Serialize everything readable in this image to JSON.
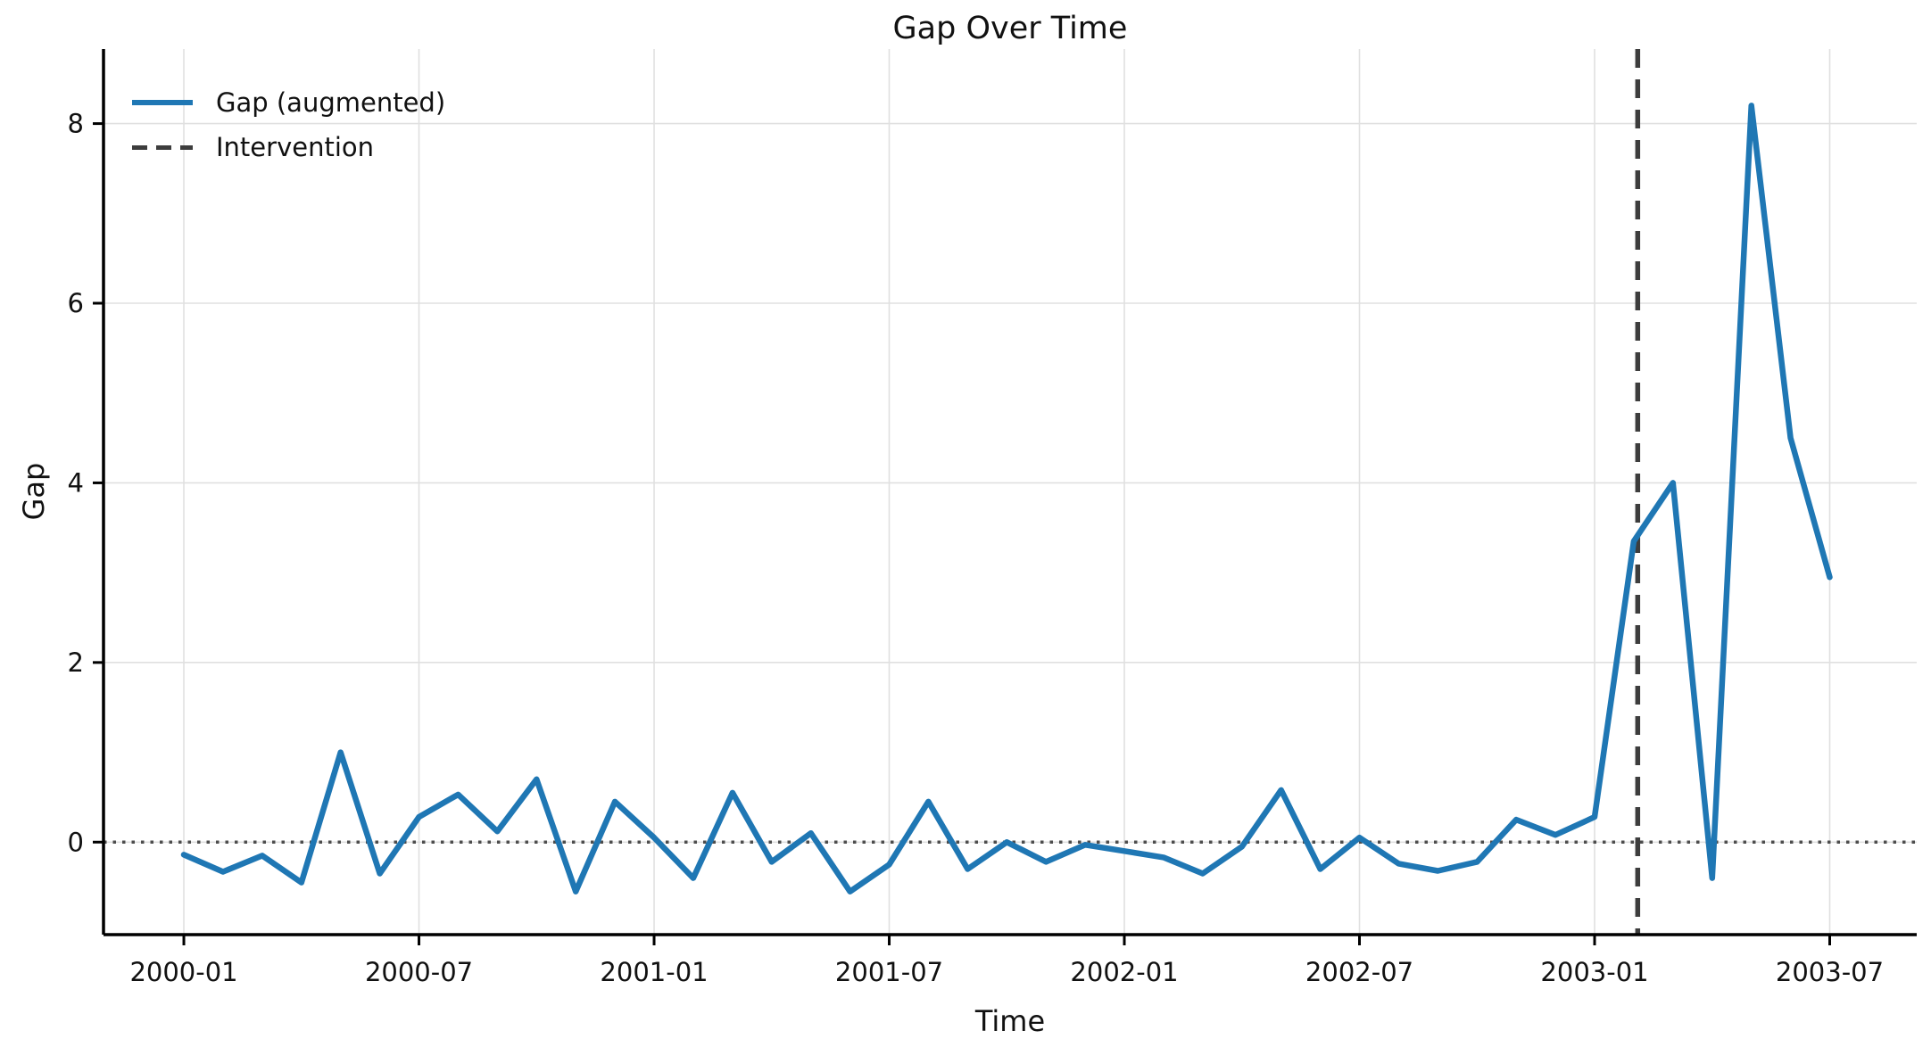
{
  "chart_data": {
    "type": "line",
    "title": "Gap Over Time",
    "xlabel": "Time",
    "ylabel": "Gap",
    "grid": true,
    "legend_position": "upper left",
    "legend": [
      "Gap (augmented)",
      "Intervention"
    ],
    "x": [
      "2000-01",
      "2000-02",
      "2000-03",
      "2000-04",
      "2000-05",
      "2000-06",
      "2000-07",
      "2000-08",
      "2000-09",
      "2000-10",
      "2000-11",
      "2000-12",
      "2001-01",
      "2001-02",
      "2001-03",
      "2001-04",
      "2001-05",
      "2001-06",
      "2001-07",
      "2001-08",
      "2001-09",
      "2001-10",
      "2001-11",
      "2001-12",
      "2002-01",
      "2002-02",
      "2002-03",
      "2002-04",
      "2002-05",
      "2002-06",
      "2002-07",
      "2002-08",
      "2002-09",
      "2002-10",
      "2002-11",
      "2002-12",
      "2003-01",
      "2003-02",
      "2003-03",
      "2003-04",
      "2003-05",
      "2003-06",
      "2003-07"
    ],
    "series": [
      {
        "name": "Gap (augmented)",
        "color": "#1f77b4",
        "values": [
          -0.14,
          -0.33,
          -0.15,
          -0.45,
          1.0,
          -0.35,
          0.28,
          0.53,
          0.12,
          0.7,
          -0.55,
          0.45,
          0.05,
          -0.4,
          0.55,
          -0.22,
          0.1,
          -0.55,
          -0.25,
          0.45,
          -0.3,
          0.0,
          -0.22,
          -0.03,
          -0.1,
          -0.17,
          -0.35,
          -0.05,
          0.58,
          -0.3,
          0.05,
          -0.24,
          -0.32,
          -0.22,
          0.25,
          0.08,
          0.28,
          3.35,
          4.0,
          -0.4,
          8.2,
          4.5,
          2.95
        ]
      }
    ],
    "intervention": {
      "label": "Intervention",
      "date": "2003-02",
      "month_offset": 37.1,
      "color": "#3d3d3d",
      "style": "dashed"
    },
    "zero_line": {
      "y": 0,
      "color": "#4d4d4d",
      "style": "dotted"
    },
    "x_ticks": [
      "2000-01",
      "2000-07",
      "2001-01",
      "2001-07",
      "2002-01",
      "2002-07",
      "2003-01",
      "2003-07"
    ],
    "x_tick_month_step": 6,
    "y_ticks": [
      "0",
      "2",
      "4",
      "6",
      "8"
    ],
    "y_tick_values": [
      0,
      2,
      4,
      6,
      8
    ],
    "xlim_months": [
      -2.05,
      44.22
    ],
    "ylim": [
      -1.03,
      8.83
    ],
    "colors": {
      "grid": "#e0e0e0",
      "spine": "#000000",
      "text": "#111111",
      "background": "#ffffff"
    }
  }
}
